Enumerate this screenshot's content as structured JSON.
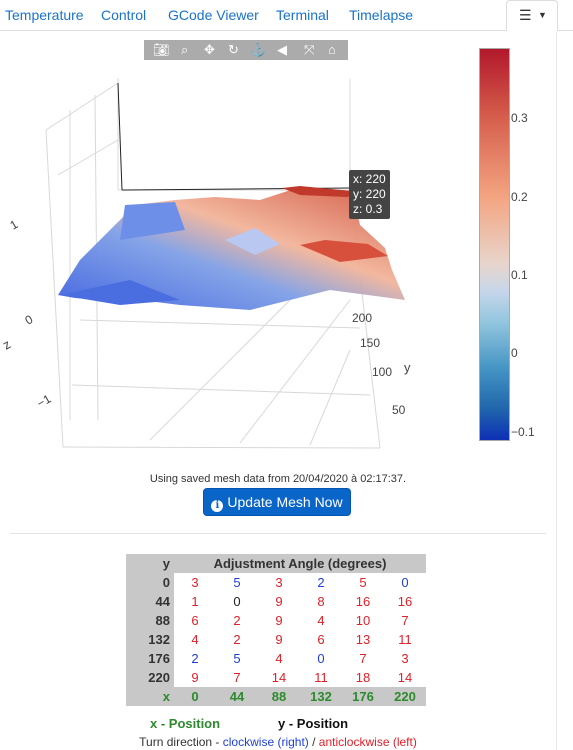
{
  "nav": {
    "tabs": [
      "Temperature",
      "Control",
      "GCode Viewer",
      "Terminal",
      "Timelapse"
    ],
    "menu_icon": "list-menu-icon"
  },
  "toolbar": {
    "icons": [
      "camera-icon",
      "zoom-icon",
      "pan-icon",
      "orbit-icon",
      "turntable-icon",
      "reset-camera-icon",
      "autoscale-icon",
      "home-icon"
    ]
  },
  "plot": {
    "z_title": "z",
    "z_ticks": [
      "1",
      "0",
      "−1"
    ],
    "y_title": "y",
    "y_ticks": [
      "200",
      "150",
      "100",
      "50"
    ],
    "tooltip": [
      "x: 220",
      "y: 220",
      "z: 0.3"
    ],
    "colorbar_ticks": [
      "0.3",
      "0.2",
      "0.1",
      "0",
      "−0.1"
    ],
    "colors": {
      "high": "#b2182b",
      "mid": "#f7f7f7",
      "low": "#0d2fb5"
    }
  },
  "status_text": "Using saved mesh data from 20/04/2020 à 02:17:37.",
  "update_button": {
    "label": "Update Mesh Now",
    "icon": "info-circle-icon"
  },
  "mesh_table": {
    "corner": "y",
    "title": "Adjustment Angle (degrees)",
    "x_label": "x",
    "x_values": [
      "0",
      "44",
      "88",
      "132",
      "176",
      "220"
    ],
    "rows": [
      {
        "y": "0",
        "cells": [
          {
            "v": "3",
            "d": "acw"
          },
          {
            "v": "5",
            "d": "cw"
          },
          {
            "v": "3",
            "d": "acw"
          },
          {
            "v": "2",
            "d": "cw"
          },
          {
            "v": "5",
            "d": "acw"
          },
          {
            "v": "0",
            "d": "cw"
          }
        ]
      },
      {
        "y": "44",
        "cells": [
          {
            "v": "1",
            "d": "acw"
          },
          {
            "v": "0",
            "d": "zero"
          },
          {
            "v": "9",
            "d": "acw"
          },
          {
            "v": "8",
            "d": "acw"
          },
          {
            "v": "16",
            "d": "acw"
          },
          {
            "v": "16",
            "d": "acw"
          }
        ]
      },
      {
        "y": "88",
        "cells": [
          {
            "v": "6",
            "d": "acw"
          },
          {
            "v": "2",
            "d": "acw"
          },
          {
            "v": "9",
            "d": "acw"
          },
          {
            "v": "4",
            "d": "acw"
          },
          {
            "v": "10",
            "d": "acw"
          },
          {
            "v": "7",
            "d": "acw"
          }
        ]
      },
      {
        "y": "132",
        "cells": [
          {
            "v": "4",
            "d": "acw"
          },
          {
            "v": "2",
            "d": "acw"
          },
          {
            "v": "9",
            "d": "acw"
          },
          {
            "v": "6",
            "d": "acw"
          },
          {
            "v": "13",
            "d": "acw"
          },
          {
            "v": "11",
            "d": "acw"
          }
        ]
      },
      {
        "y": "176",
        "cells": [
          {
            "v": "2",
            "d": "cw"
          },
          {
            "v": "5",
            "d": "cw"
          },
          {
            "v": "4",
            "d": "acw"
          },
          {
            "v": "0",
            "d": "cw"
          },
          {
            "v": "7",
            "d": "acw"
          },
          {
            "v": "3",
            "d": "acw"
          }
        ]
      },
      {
        "y": "220",
        "cells": [
          {
            "v": "9",
            "d": "acw"
          },
          {
            "v": "7",
            "d": "acw"
          },
          {
            "v": "14",
            "d": "acw"
          },
          {
            "v": "11",
            "d": "acw"
          },
          {
            "v": "18",
            "d": "acw"
          },
          {
            "v": "14",
            "d": "acw"
          }
        ]
      }
    ]
  },
  "legend": {
    "x_position": "x - Position",
    "y_position": "y - Position",
    "turn_prefix": "Turn direction - ",
    "clockwise": "clockwise (right)",
    "separator": " / ",
    "anticlockwise": "anticlockwise (left)"
  }
}
